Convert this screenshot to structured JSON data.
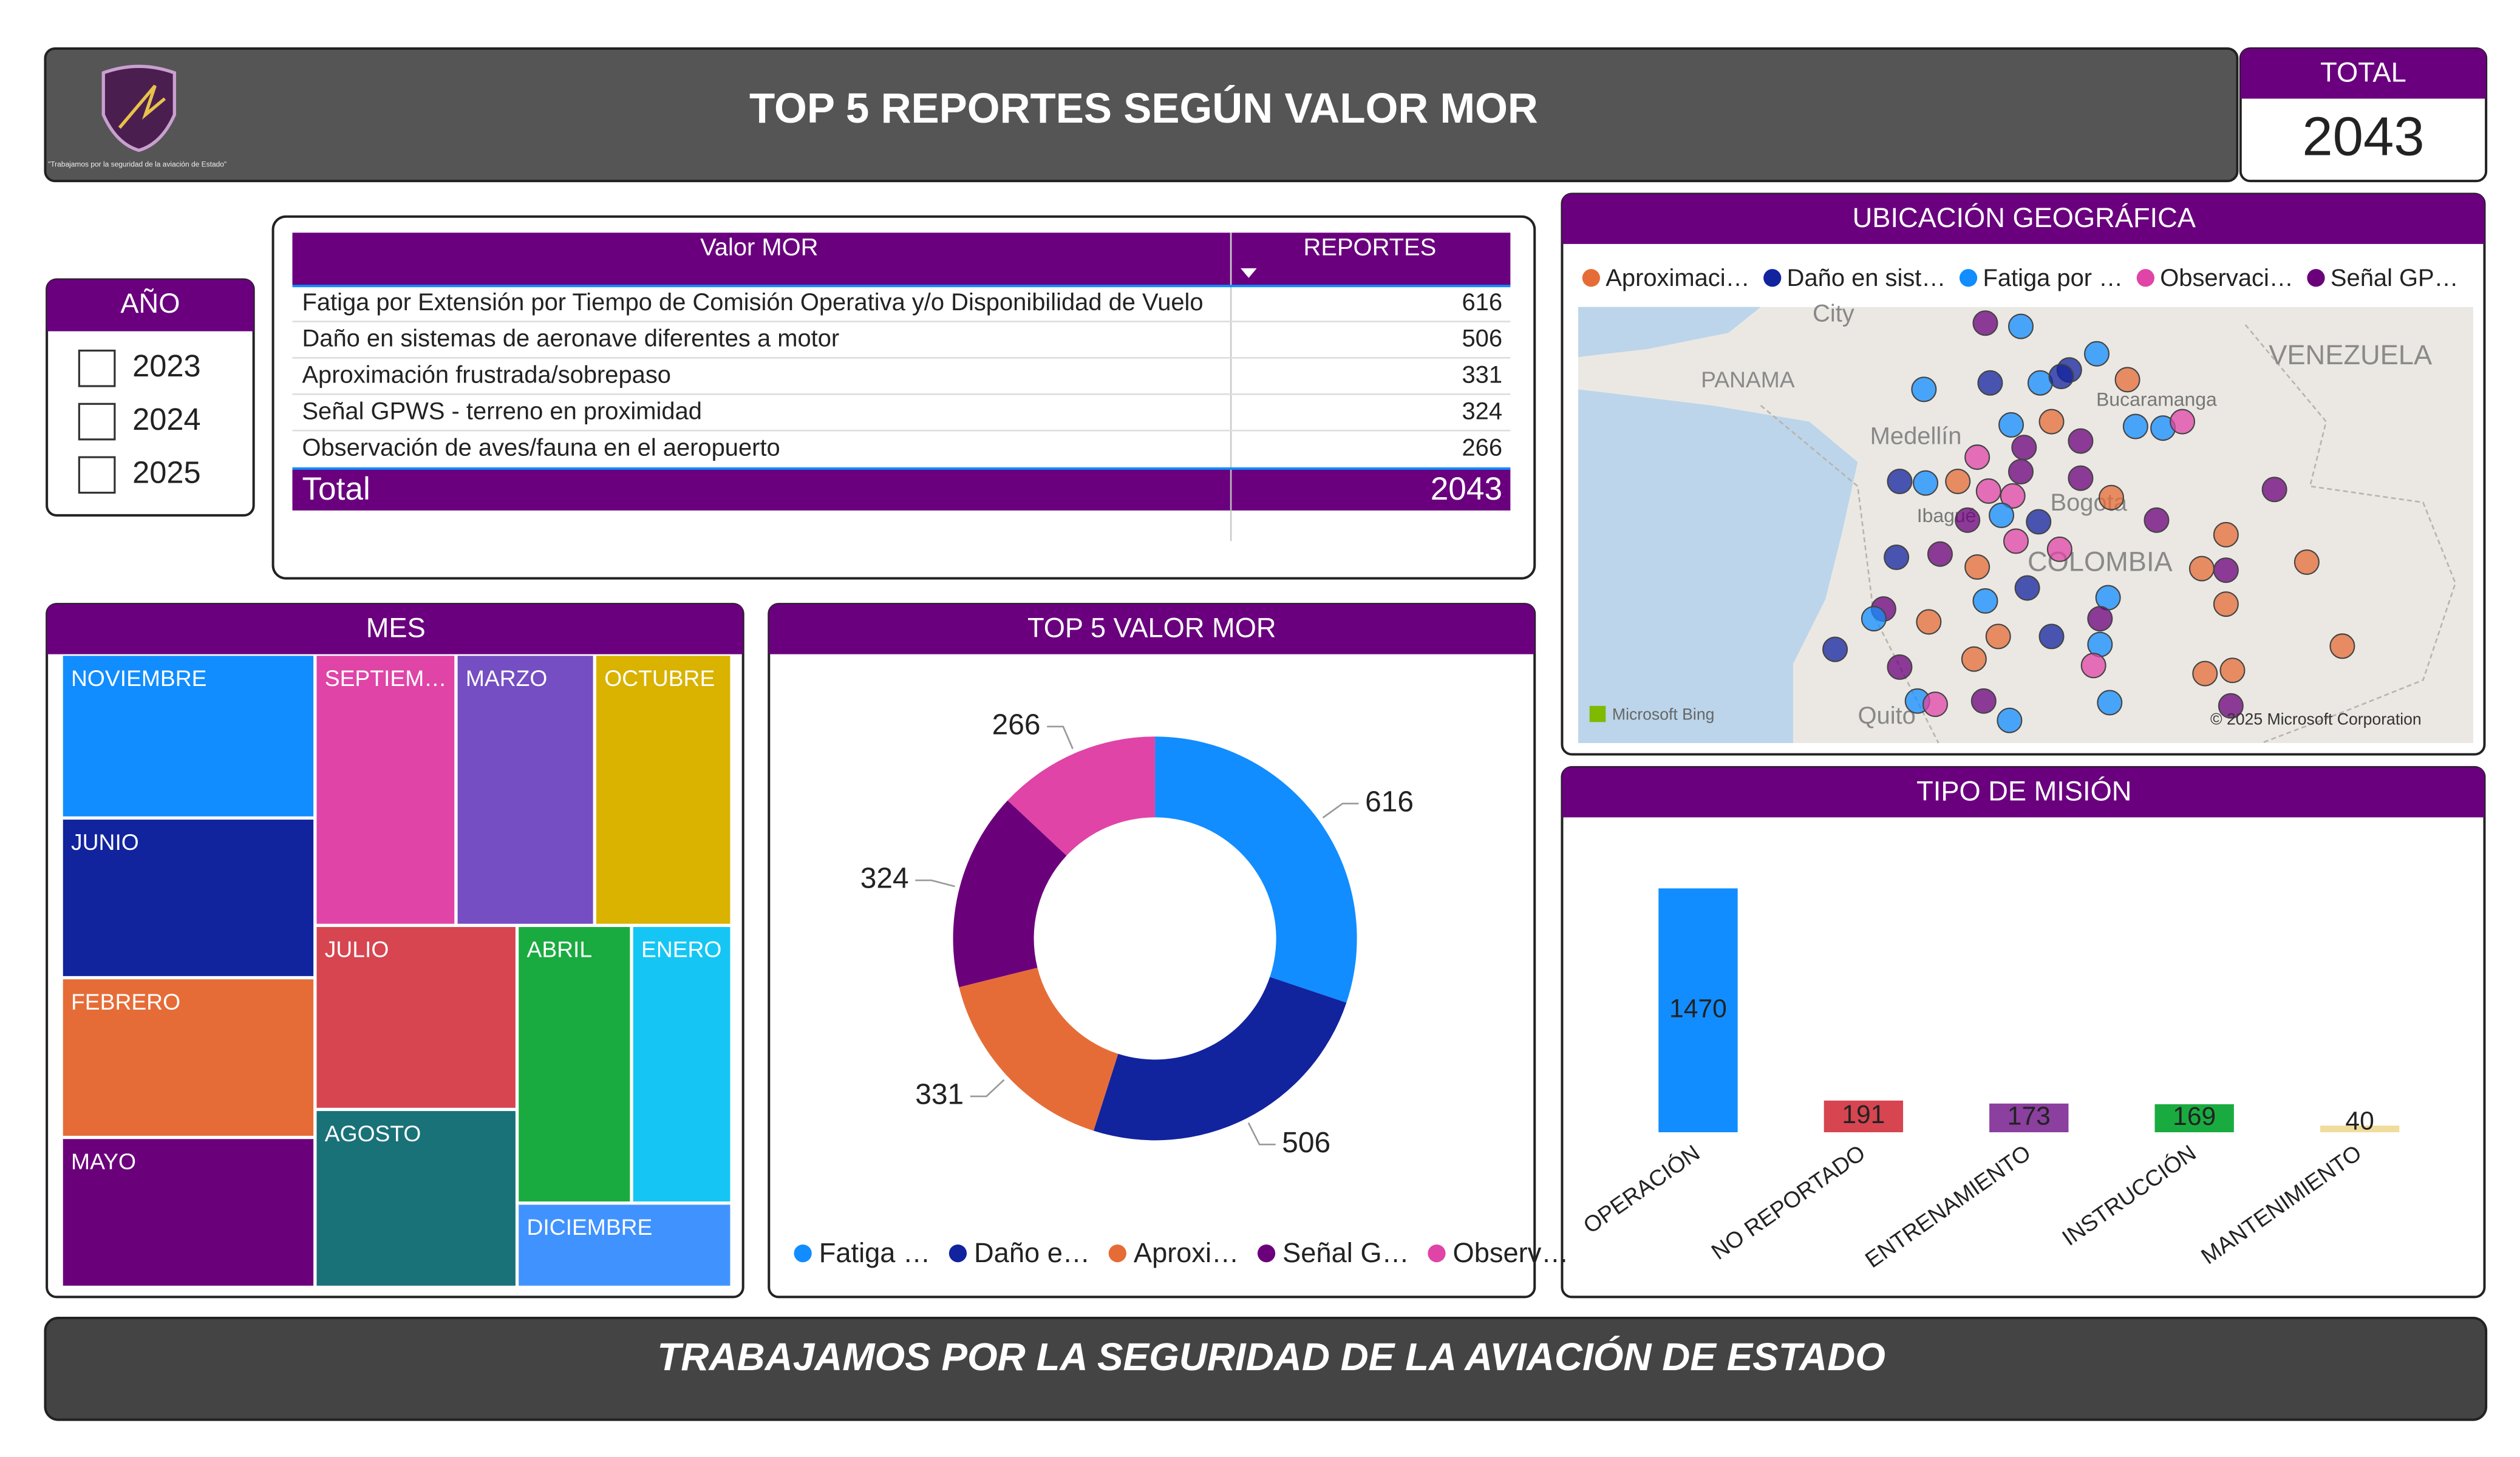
{
  "header": {
    "title": "TOP 5 REPORTES SEGÚN VALOR MOR",
    "logo_tagline": "\"Trabajamos por la seguridad de la aviación de Estado\""
  },
  "total_card": {
    "title": "TOTAL",
    "value": 2043
  },
  "year_slicer": {
    "title": "AÑO",
    "options": [
      "2023",
      "2024",
      "2025"
    ]
  },
  "table": {
    "columns": [
      "Valor MOR",
      "REPORTES"
    ],
    "rows": [
      [
        "Fatiga por Extensión por Tiempo de Comisión Operativa y/o Disponibilidad de Vuelo",
        616
      ],
      [
        "Daño en sistemas de aeronave diferentes a motor",
        506
      ],
      [
        "Aproximación frustrada/sobrepaso",
        331
      ],
      [
        "Señal GPWS - terreno en proximidad",
        324
      ],
      [
        "Observación de aves/fauna en el aeropuerto",
        266
      ]
    ],
    "total": [
      "Total",
      2043
    ]
  },
  "chart_data": [
    {
      "type": "treemap",
      "title": "MES",
      "categories": [
        "NOVIEMBRE",
        "JUNIO",
        "FEBRERO",
        "MAYO",
        "SEPTIEM…",
        "MARZO",
        "OCTUBRE",
        "JULIO",
        "AGOSTO",
        "ABRIL",
        "ENERO",
        "DICIEMBRE"
      ],
      "values": [
        200,
        195,
        195,
        183,
        184,
        181,
        179,
        179,
        173,
        153,
        134,
        87
      ],
      "colors": [
        "#118DFF",
        "#12239E",
        "#E66C37",
        "#6B007B",
        "#E044A7",
        "#744EC2",
        "#D9B300",
        "#D64550",
        "#197278",
        "#1AAB40",
        "#15C6F4",
        "#4092FF"
      ]
    },
    {
      "type": "donut",
      "title": "TOP 5 VALOR MOR",
      "categories": [
        "Fatiga …",
        "Daño e…",
        "Aproxi…",
        "Señal G…",
        "Observ…"
      ],
      "values": [
        616,
        506,
        331,
        324,
        266
      ],
      "colors": [
        "#118DFF",
        "#12239E",
        "#E66C37",
        "#6B007B",
        "#E044A7"
      ]
    },
    {
      "type": "bar",
      "title": "TIPO DE MISIÓN",
      "categories": [
        "OPERACIÓN",
        "NO REPORTADO",
        "ENTRENAMIENTO",
        "INSTRUCCIÓN",
        "MANTENIMIENTO"
      ],
      "values": [
        1470,
        191,
        173,
        169,
        40
      ],
      "colors": [
        "#118DFF",
        "#D64550",
        "#8B3F9E",
        "#1AAB40",
        "#F0DC9C"
      ],
      "ylim": [
        0,
        1470
      ]
    }
  ],
  "map": {
    "title": "UBICACIÓN GEOGRÁFICA",
    "legend": [
      {
        "name": "Aproximaci…",
        "color": "#E66C37"
      },
      {
        "name": "Daño en sist…",
        "color": "#12239E"
      },
      {
        "name": "Fatiga por …",
        "color": "#118DFF"
      },
      {
        "name": "Observaci…",
        "color": "#E044A7"
      },
      {
        "name": "Señal GP…",
        "color": "#6B007B"
      }
    ],
    "places": [
      "City",
      "PANAMA",
      "VENEZUELA",
      "Medellín",
      "Bucaramanga",
      "Ibagué",
      "Bogota",
      "COLOMBIA",
      "Quito"
    ],
    "credits": [
      "Microsoft Bing",
      "© 2025 Microsoft Corporation"
    ]
  },
  "footer": "TRABAJAMOS POR LA SEGURIDAD DE LA AVIACIÓN DE ESTADO"
}
